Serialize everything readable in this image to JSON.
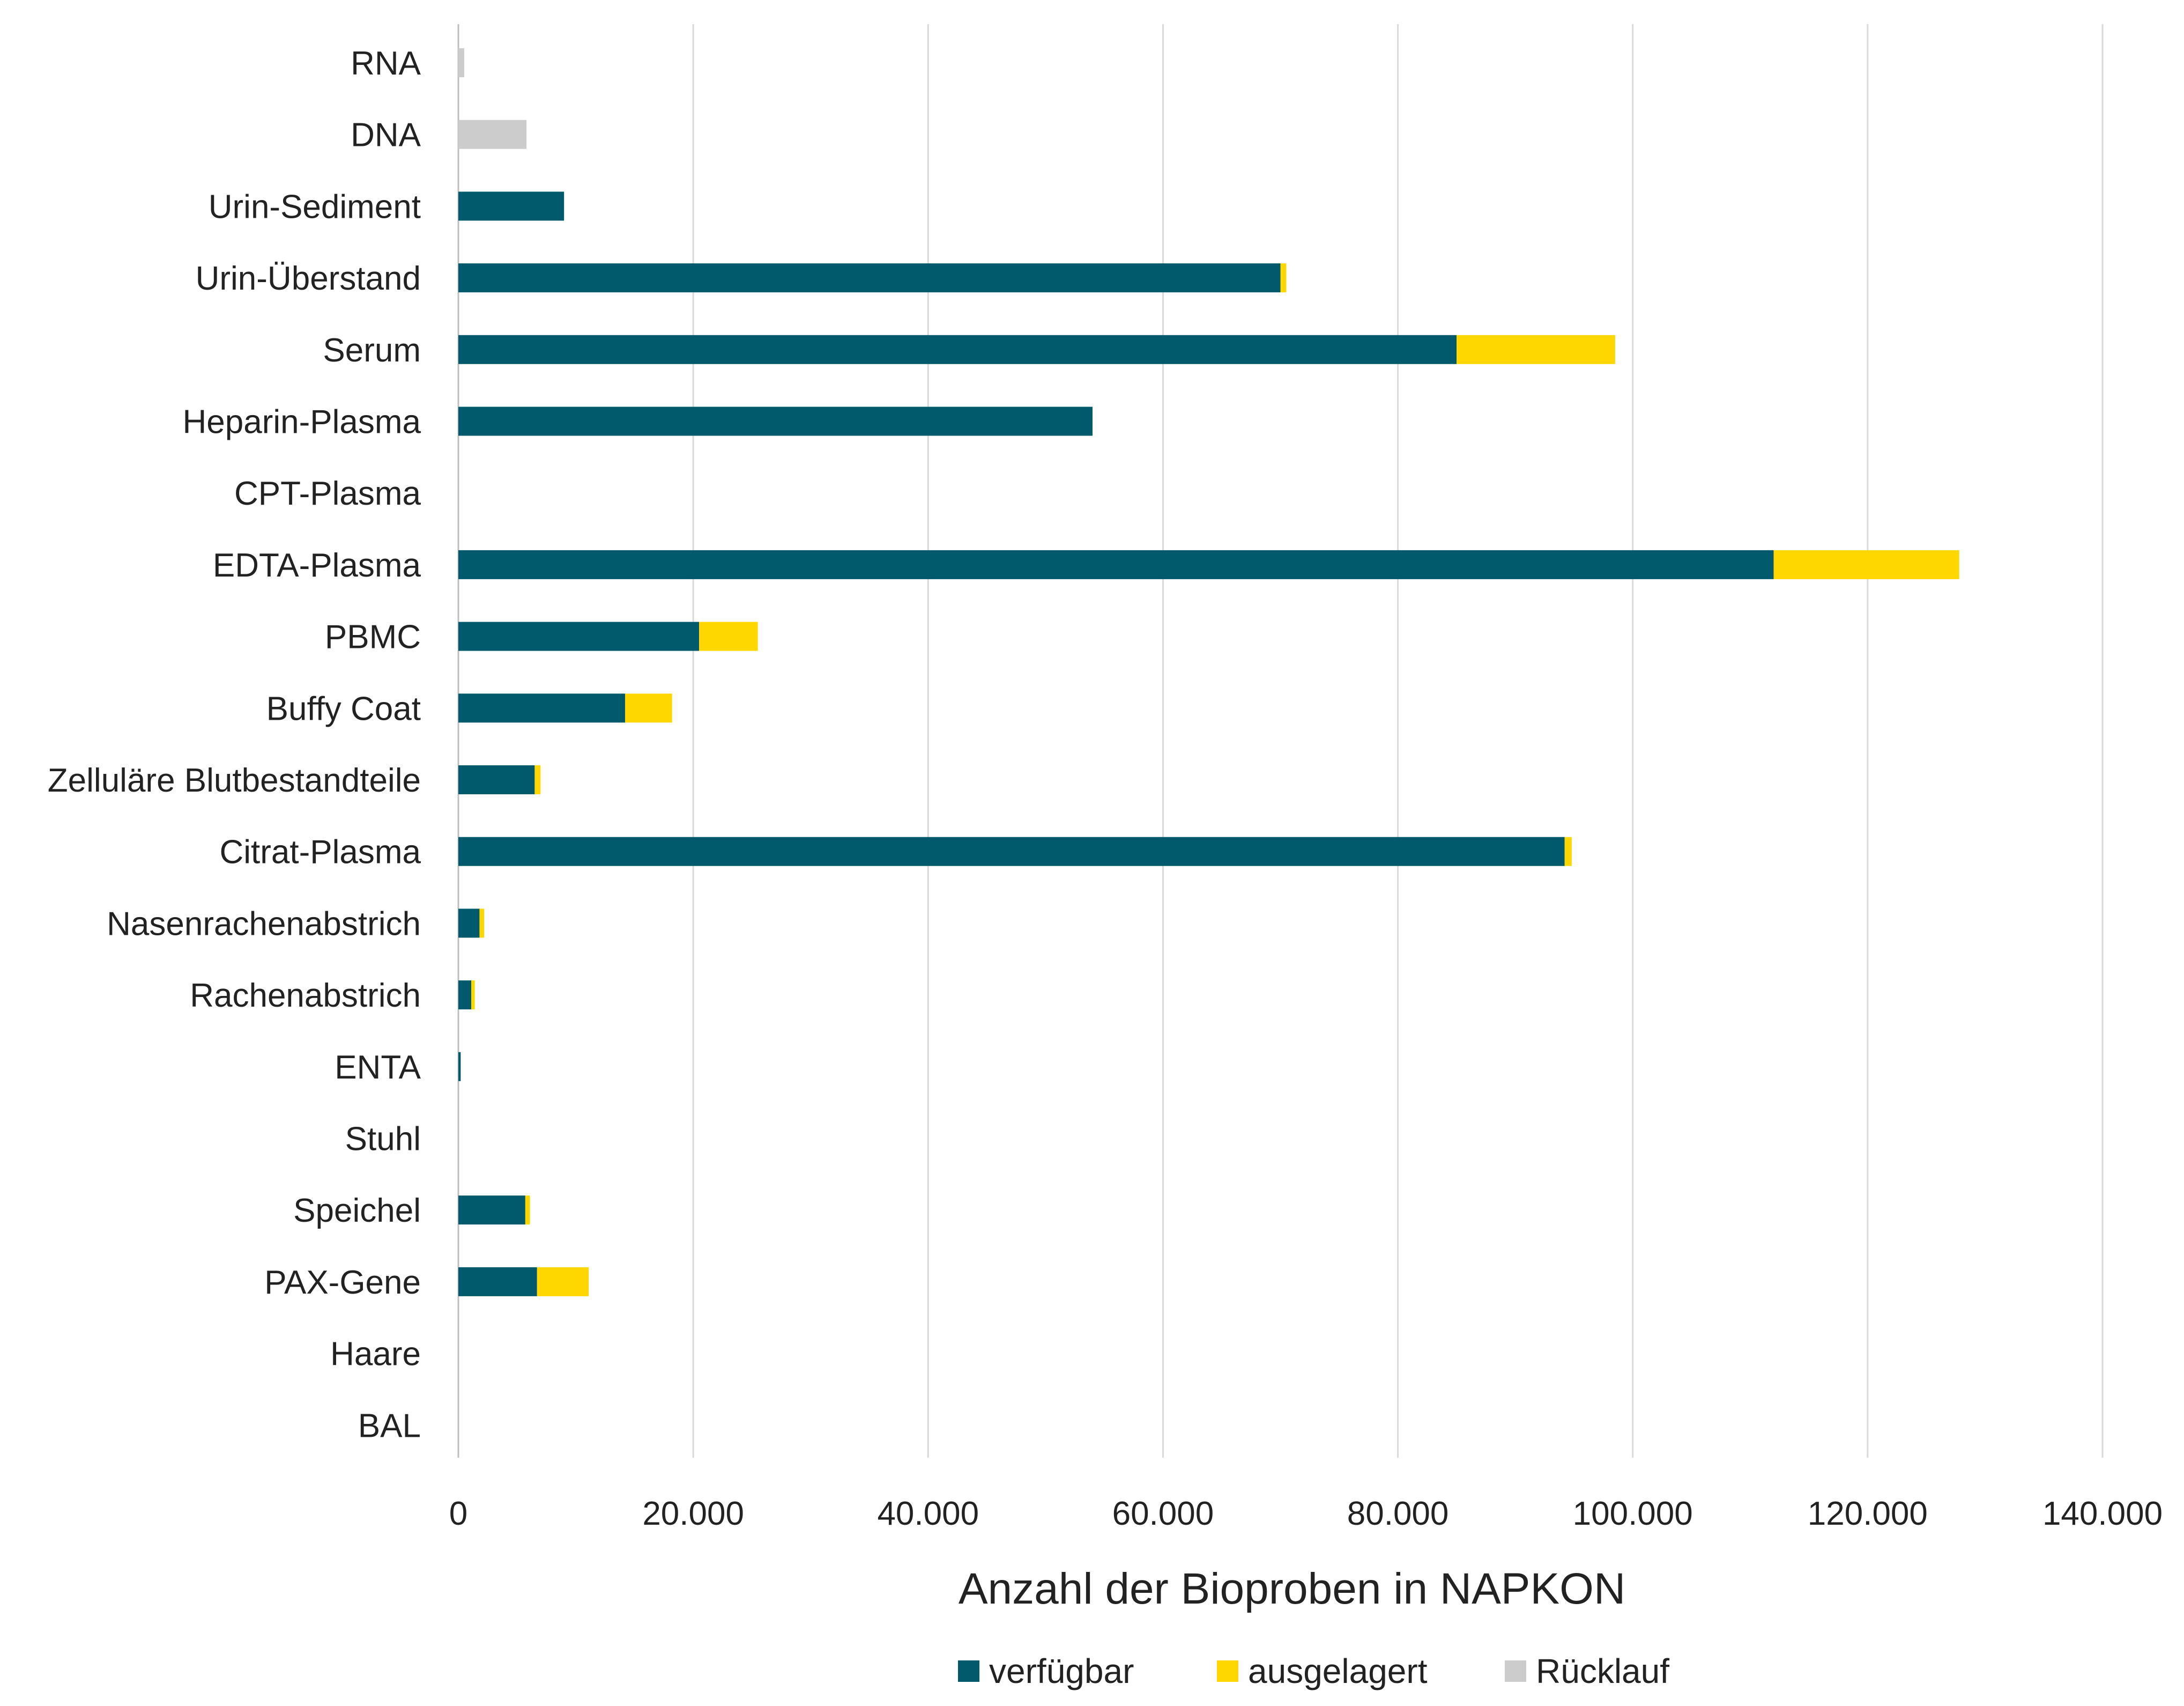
{
  "chart_data": {
    "type": "bar",
    "orientation": "horizontal",
    "stacked": true,
    "title": "",
    "xlabel": "Anzahl der Bioproben in NAPKON",
    "ylabel": "",
    "xlim": [
      0,
      140000
    ],
    "xticks": [
      0,
      20000,
      40000,
      60000,
      80000,
      100000,
      120000,
      140000
    ],
    "xtick_labels": [
      "0",
      "20.000",
      "40.000",
      "60.000",
      "80.000",
      "100.000",
      "120.000",
      "140.000"
    ],
    "grid": "vertical",
    "legend_position": "bottom",
    "categories": [
      "RNA",
      "DNA",
      "Urin-Sediment",
      "Urin-Überstand",
      "Serum",
      "Heparin-Plasma",
      "CPT-Plasma",
      "EDTA-Plasma",
      "PBMC",
      "Buffy Coat",
      "Zelluläre Blutbestandteile",
      "Citrat-Plasma",
      "Nasenrachenabstrich",
      "Rachenabstrich",
      "ENTA",
      "Stuhl",
      "Speichel",
      "PAX-Gene",
      "Haare",
      "BAL"
    ],
    "series": [
      {
        "name": "verfügbar",
        "color": "#005A6B",
        "values": [
          0,
          0,
          9000,
          70000,
          85000,
          54000,
          0,
          112000,
          20500,
          14200,
          6500,
          94200,
          1800,
          1100,
          200,
          0,
          5700,
          6700,
          0,
          0
        ]
      },
      {
        "name": "ausgelagert",
        "color": "#FFD700",
        "values": [
          0,
          0,
          0,
          500,
          13500,
          0,
          0,
          15800,
          5000,
          4000,
          500,
          600,
          400,
          300,
          0,
          0,
          400,
          4400,
          0,
          0
        ]
      },
      {
        "name": "Rücklauf",
        "color": "#CCCCCC",
        "values": [
          500,
          5800,
          0,
          0,
          0,
          0,
          0,
          0,
          0,
          0,
          0,
          0,
          0,
          0,
          0,
          0,
          0,
          0,
          0,
          0
        ]
      }
    ]
  }
}
